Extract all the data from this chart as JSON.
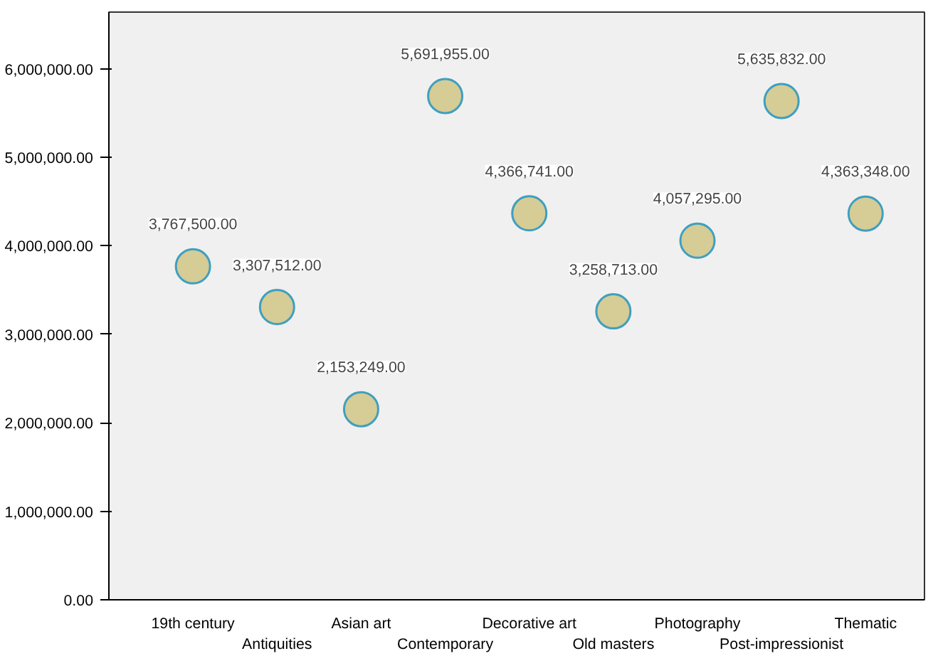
{
  "chart_data": {
    "type": "scatter",
    "categories": [
      "19th century",
      "Antiquities",
      "Asian art",
      "Contemporary",
      "Decorative art",
      "Old masters",
      "Photography",
      "Post-impressionist",
      "Thematic"
    ],
    "values": [
      3767500,
      3307512,
      2153249,
      5691955,
      4366741,
      3258713,
      4057295,
      5635832,
      4363348
    ],
    "color": "#d5cc96",
    "value_labels": [
      "3,767,500.00",
      "3,307,512.00",
      "2,153,249.00",
      "5,691,955.00",
      "4,366,741.00",
      "3,258,713.00",
      "4,057,295.00",
      "5,635,832.00",
      "4,363,348.00"
    ],
    "marker": "circle",
    "grid": false,
    "ylim": [
      0,
      6640000
    ],
    "yticks": [
      {
        "value": 0,
        "label": "0.00"
      },
      {
        "value": 1000000,
        "label": "1,000,000.00"
      },
      {
        "value": 2000000,
        "label": "2,000,000.00"
      },
      {
        "value": 3000000,
        "label": "3,000,000.00"
      },
      {
        "value": 4000000,
        "label": "4,000,000.00"
      },
      {
        "value": 5000000,
        "label": "5,000,000.00"
      },
      {
        "value": 6000000,
        "label": "6,000,000.00"
      }
    ]
  }
}
